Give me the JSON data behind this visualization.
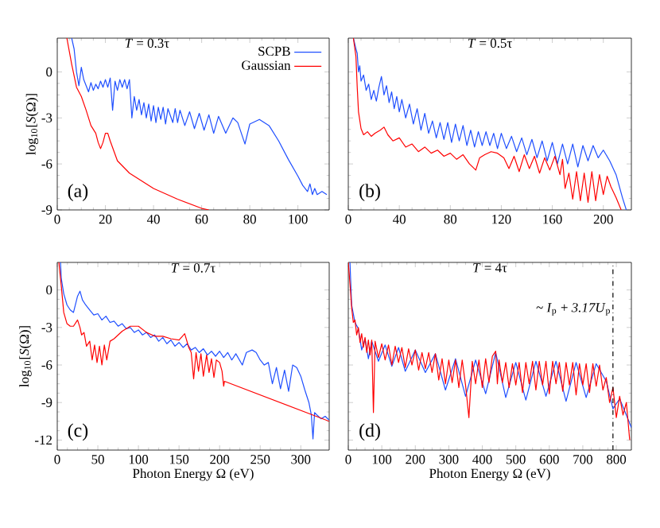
{
  "chart_data": [
    {
      "type": "line",
      "title": "*T* = 0.3τ",
      "ylabel": "log$_{10}$[*S*(Ω)]",
      "xlim": [
        0,
        113
      ],
      "ylim": [
        -9,
        2.2
      ],
      "xticks": [
        0,
        20,
        40,
        60,
        80,
        100
      ],
      "yticks": [
        -9,
        -6,
        -3,
        0
      ],
      "legend": "top right",
      "annotations": [
        "(a)"
      ],
      "series": [
        {
          "name": "SCPB",
          "color": "#1f4fff",
          "x": [
            6,
            7,
            8,
            9,
            10,
            11,
            12,
            13,
            14,
            15,
            16,
            17,
            18,
            19,
            20,
            21,
            22,
            23,
            24,
            25,
            26,
            27,
            28,
            29,
            30,
            31,
            32,
            33,
            34,
            35,
            36,
            37,
            38,
            39,
            40,
            41,
            42,
            43,
            44,
            45,
            46,
            48,
            49,
            50,
            51,
            53,
            55,
            57,
            59,
            61,
            63,
            65,
            67,
            70,
            73,
            75,
            78,
            80,
            84,
            88,
            92,
            96,
            100,
            102,
            104,
            105,
            106,
            107,
            108,
            110,
            112
          ],
          "values": [
            2.2,
            1.5,
            0,
            -0.9,
            0.3,
            -0.5,
            -0.9,
            -1.3,
            -0.7,
            -1.2,
            -0.8,
            -1.1,
            -0.6,
            -1.0,
            -0.5,
            -1.0,
            -0.4,
            -2.5,
            -0.6,
            -1.2,
            -0.5,
            -1.0,
            -0.5,
            -1.1,
            -0.5,
            -3.0,
            -1.6,
            -2.5,
            -1.8,
            -2.8,
            -2.0,
            -3.0,
            -2.1,
            -3.2,
            -2.2,
            -3.3,
            -2.3,
            -3.1,
            -2.3,
            -3.4,
            -2.4,
            -3.3,
            -2.4,
            -3.3,
            -2.5,
            -3.5,
            -2.6,
            -3.7,
            -2.7,
            -3.8,
            -2.8,
            -4.0,
            -2.9,
            -4.0,
            -3.0,
            -3.3,
            -4.7,
            -3.4,
            -3.1,
            -3.5,
            -4.5,
            -5.7,
            -6.8,
            -7.4,
            -7.8,
            -7.3,
            -8.0,
            -7.6,
            -8.0,
            -7.8,
            -8.0
          ]
        },
        {
          "name": "Gaussian",
          "color": "#ff0000",
          "x": [
            4,
            6,
            8,
            10,
            12,
            14,
            16,
            17,
            18,
            19,
            20,
            21,
            22,
            25,
            30,
            40,
            50,
            60,
            63
          ],
          "values": [
            2.2,
            0.5,
            -1.0,
            -1.6,
            -2.5,
            -3.5,
            -4.0,
            -4.6,
            -5.0,
            -4.6,
            -4.0,
            -4.0,
            -4.5,
            -5.8,
            -6.6,
            -7.6,
            -8.3,
            -8.9,
            -9
          ]
        }
      ]
    },
    {
      "type": "line",
      "title": "*T* = 0.5τ",
      "xlim": [
        0,
        222
      ],
      "ylim": [
        -9,
        2.2
      ],
      "xticks": [
        0,
        40,
        80,
        120,
        160,
        200
      ],
      "yticks": [
        -9,
        -6,
        -3,
        0
      ],
      "tick_labels": "x",
      "annotations": [
        "(b)"
      ],
      "series": [
        {
          "color": "#1f4fff",
          "x": [
            4,
            6,
            7,
            8,
            9,
            10,
            12,
            14,
            16,
            18,
            20,
            22,
            24,
            26,
            28,
            30,
            32,
            34,
            36,
            38,
            40,
            42,
            45,
            48,
            51,
            54,
            57,
            60,
            63,
            66,
            69,
            72,
            75,
            78,
            81,
            84,
            87,
            90,
            93,
            96,
            99,
            102,
            105,
            108,
            111,
            114,
            117,
            120,
            124,
            128,
            132,
            136,
            140,
            144,
            148,
            152,
            156,
            160,
            164,
            168,
            172,
            176,
            180,
            184,
            188,
            192,
            196,
            200,
            205,
            210,
            215,
            218
          ],
          "values": [
            2.2,
            1.5,
            1.2,
            0.0,
            0.4,
            -0.6,
            -0.2,
            -1.2,
            -0.8,
            -1.8,
            -1.2,
            -1.9,
            -1.0,
            -0.3,
            -1.5,
            -0.9,
            -2.0,
            -1.3,
            -2.4,
            -1.6,
            -2.6,
            -1.8,
            -3.0,
            -2.1,
            -3.4,
            -2.4,
            -3.8,
            -2.7,
            -4.0,
            -3.2,
            -4.3,
            -3.3,
            -4.4,
            -3.3,
            -4.6,
            -3.4,
            -4.5,
            -3.5,
            -4.8,
            -3.8,
            -4.9,
            -3.9,
            -4.8,
            -3.9,
            -4.8,
            -4.0,
            -5.0,
            -4.0,
            -5.0,
            -4.2,
            -5.2,
            -4.3,
            -5.4,
            -4.4,
            -5.6,
            -4.5,
            -5.8,
            -4.6,
            -6.0,
            -4.7,
            -6.0,
            -4.7,
            -6.2,
            -4.8,
            -5.8,
            -4.8,
            -5.6,
            -5.1,
            -5.8,
            -6.7,
            -8.2,
            -9
          ]
        },
        {
          "color": "#ff0000",
          "x": [
            4,
            6,
            7,
            8,
            10,
            12,
            15,
            18,
            21,
            25,
            28,
            31,
            35,
            40,
            45,
            50,
            55,
            60,
            65,
            70,
            75,
            80,
            85,
            90,
            95,
            100,
            103,
            107,
            112,
            117,
            122,
            126,
            130,
            134,
            138,
            142,
            146,
            150,
            154,
            158,
            162,
            166,
            168,
            170,
            173,
            176,
            179,
            182,
            185,
            188,
            191,
            194,
            197,
            200,
            203,
            206,
            210,
            214
          ],
          "values": [
            2.2,
            1.0,
            -1.0,
            -2.6,
            -3.7,
            -4.1,
            -3.9,
            -4.2,
            -4.0,
            -3.8,
            -3.6,
            -4.1,
            -4.5,
            -4.3,
            -4.9,
            -4.7,
            -5.2,
            -4.9,
            -5.3,
            -5.1,
            -5.5,
            -5.3,
            -5.7,
            -5.4,
            -6.0,
            -6.4,
            -5.6,
            -5.4,
            -5.2,
            -5.3,
            -5.6,
            -6.3,
            -5.5,
            -6.5,
            -5.4,
            -6.3,
            -5.5,
            -6.6,
            -5.6,
            -6.4,
            -5.5,
            -6.7,
            -5.7,
            -7.6,
            -6.6,
            -8.3,
            -6.5,
            -8.4,
            -6.6,
            -8.5,
            -6.5,
            -8.4,
            -6.7,
            -8.0,
            -6.8,
            -7.5,
            -8.2,
            -9
          ]
        }
      ]
    },
    {
      "type": "line",
      "title": "*T* = 0.7τ",
      "xlabel": "Photon Energy Ω (eV)",
      "ylabel": "log$_{10}$[*S*(Ω)]",
      "xlim": [
        0,
        335
      ],
      "ylim": [
        -12.8,
        2.2
      ],
      "xticks": [
        0,
        50,
        100,
        150,
        200,
        250,
        300
      ],
      "yticks": [
        -12,
        -9,
        -6,
        -3,
        0
      ],
      "annotations": [
        "(c)"
      ],
      "series": [
        {
          "color": "#1f4fff",
          "x": [
            4,
            5,
            8,
            12,
            16,
            20,
            25,
            28,
            31,
            35,
            40,
            45,
            50,
            55,
            60,
            65,
            70,
            75,
            80,
            85,
            90,
            95,
            100,
            105,
            110,
            115,
            120,
            125,
            130,
            135,
            140,
            145,
            150,
            155,
            160,
            165,
            170,
            175,
            180,
            185,
            190,
            195,
            200,
            205,
            210,
            215,
            220,
            228,
            233,
            240,
            245,
            250,
            255,
            260,
            265,
            270,
            275,
            280,
            285,
            290,
            295,
            300,
            305,
            310,
            313,
            315,
            317,
            320,
            325,
            330,
            335
          ],
          "values": [
            2.2,
            0.9,
            -0.3,
            -1.2,
            -1.6,
            -1.8,
            -0.5,
            -0.1,
            -0.8,
            -1.2,
            -1.6,
            -2.0,
            -1.9,
            -2.4,
            -2.1,
            -2.6,
            -2.5,
            -2.9,
            -2.7,
            -3.1,
            -3.0,
            -3.4,
            -3.2,
            -3.6,
            -3.4,
            -3.8,
            -3.6,
            -4.1,
            -3.8,
            -4.3,
            -4.0,
            -4.5,
            -4.2,
            -4.6,
            -4.3,
            -4.8,
            -4.6,
            -5.0,
            -4.7,
            -5.2,
            -4.9,
            -5.3,
            -4.9,
            -5.4,
            -5.0,
            -5.6,
            -5.1,
            -6.0,
            -5.0,
            -4.8,
            -5.0,
            -5.6,
            -6.0,
            -5.8,
            -7.5,
            -6.2,
            -7.9,
            -6.4,
            -8.1,
            -6.0,
            -6.2,
            -6.9,
            -8.0,
            -9.0,
            -10.0,
            -11.9,
            -9.8,
            -10.0,
            -10.3,
            -10.1,
            -10.4
          ]
        },
        {
          "color": "#ff0000",
          "x": [
            2,
            5,
            8,
            12,
            16,
            20,
            25,
            28,
            30,
            33,
            36,
            40,
            43,
            46,
            49,
            52,
            55,
            58,
            61,
            65,
            70,
            80,
            90,
            100,
            110,
            120,
            130,
            140,
            150,
            157,
            162,
            165,
            168,
            171,
            174,
            177,
            180,
            184,
            187,
            190,
            193,
            196,
            200,
            203,
            205,
            206,
            335
          ],
          "values": [
            2.2,
            0.3,
            -1.8,
            -2.7,
            -2.9,
            -2.9,
            -2.4,
            -3.0,
            -3.6,
            -3.4,
            -4.5,
            -4.1,
            -5.6,
            -4.4,
            -5.8,
            -4.5,
            -6.0,
            -4.4,
            -5.6,
            -4.1,
            -3.9,
            -3.3,
            -2.9,
            -2.9,
            -3.4,
            -3.7,
            -3.7,
            -3.9,
            -4.0,
            -3.5,
            -4.6,
            -5.0,
            -7.1,
            -5.0,
            -6.5,
            -5.1,
            -6.9,
            -5.2,
            -6.6,
            -5.5,
            -7.0,
            -5.6,
            -5.8,
            -6.5,
            -7.7,
            -7.3,
            -10.5
          ]
        }
      ]
    },
    {
      "type": "line",
      "title": "*T* = 4τ",
      "xlabel": "Photon Energy Ω (eV)",
      "xlim": [
        0,
        845
      ],
      "ylim": [
        -12.8,
        2.2
      ],
      "xticks": [
        0,
        100,
        200,
        300,
        400,
        500,
        600,
        700,
        800
      ],
      "yticks": [
        -12,
        -9,
        -6,
        -3,
        0
      ],
      "tick_labels": "x",
      "annotations": [
        "(d)"
      ],
      "ref_lines": [
        {
          "axis": "x",
          "value": 790,
          "label": "~ *I*$_{p}$ + *3.17U*$_{p}$",
          "color": "#000000",
          "line_style": "dashdot"
        }
      ],
      "series": [
        {
          "color": "#1f4fff",
          "x": [
            5,
            10,
            20,
            30,
            40,
            50,
            60,
            70,
            90,
            110,
            130,
            150,
            170,
            200,
            230,
            260,
            290,
            320,
            350,
            380,
            410,
            440,
            470,
            500,
            530,
            560,
            590,
            620,
            650,
            680,
            710,
            740,
            770,
            790,
            810,
            830,
            845
          ],
          "values": [
            2.2,
            -1.2,
            -2.6,
            -3.1,
            -4.8,
            -3.9,
            -5.5,
            -4.1,
            -5.7,
            -4.4,
            -6.1,
            -4.6,
            -6.5,
            -4.8,
            -6.6,
            -5.1,
            -8.0,
            -5.5,
            -8.5,
            -5.6,
            -8.3,
            -5.0,
            -8.6,
            -5.8,
            -8.8,
            -5.7,
            -8.5,
            -5.7,
            -8.9,
            -5.8,
            -8.6,
            -5.9,
            -7.3,
            -9.5,
            -8.7,
            -10.0,
            -11.0
          ]
        },
        {
          "color": "#ff0000",
          "x": [
            0,
            5,
            10,
            15,
            20,
            25,
            30,
            35,
            40,
            45,
            50,
            55,
            60,
            65,
            70,
            75,
            80,
            90,
            100,
            110,
            120,
            130,
            140,
            150,
            160,
            170,
            180,
            190,
            200,
            210,
            220,
            230,
            240,
            250,
            260,
            270,
            280,
            290,
            300,
            310,
            320,
            330,
            340,
            350,
            360,
            370,
            380,
            390,
            400,
            410,
            420,
            430,
            440,
            445,
            450,
            460,
            470,
            480,
            490,
            500,
            510,
            520,
            530,
            540,
            550,
            560,
            570,
            580,
            590,
            600,
            610,
            620,
            630,
            640,
            650,
            660,
            670,
            680,
            690,
            700,
            710,
            720,
            730,
            740,
            750,
            760,
            770,
            780,
            790,
            800,
            810,
            820,
            830,
            840
          ],
          "values": [
            2.2,
            0.5,
            -1.4,
            -2.6,
            -2.4,
            -3.6,
            -3.0,
            -4.2,
            -3.5,
            -4.6,
            -3.8,
            -5.0,
            -4.0,
            -5.2,
            -4.0,
            -9.8,
            -4.1,
            -5.4,
            -4.3,
            -5.6,
            -4.4,
            -6.0,
            -4.5,
            -5.8,
            -4.6,
            -6.2,
            -4.7,
            -6.0,
            -4.8,
            -6.4,
            -5.0,
            -6.3,
            -5.0,
            -6.6,
            -5.1,
            -7.2,
            -5.5,
            -7.5,
            -5.6,
            -7.4,
            -5.6,
            -7.8,
            -5.6,
            -7.6,
            -10.2,
            -5.7,
            -7.5,
            -5.6,
            -7.8,
            -5.5,
            -7.4,
            -5.3,
            -4.9,
            -7.5,
            -5.6,
            -7.4,
            -5.8,
            -7.8,
            -5.9,
            -7.6,
            -5.8,
            -8.2,
            -5.8,
            -7.5,
            -5.7,
            -8.0,
            -5.7,
            -7.6,
            -5.7,
            -8.3,
            -5.7,
            -7.5,
            -5.8,
            -8.1,
            -5.8,
            -7.6,
            -5.8,
            -8.4,
            -5.9,
            -7.6,
            -5.9,
            -8.2,
            -5.9,
            -7.7,
            -6.0,
            -8.0,
            -7.0,
            -9.0,
            -7.8,
            -10.2,
            -8.5,
            -10.0,
            -9.0,
            -12.0
          ]
        }
      ]
    }
  ]
}
